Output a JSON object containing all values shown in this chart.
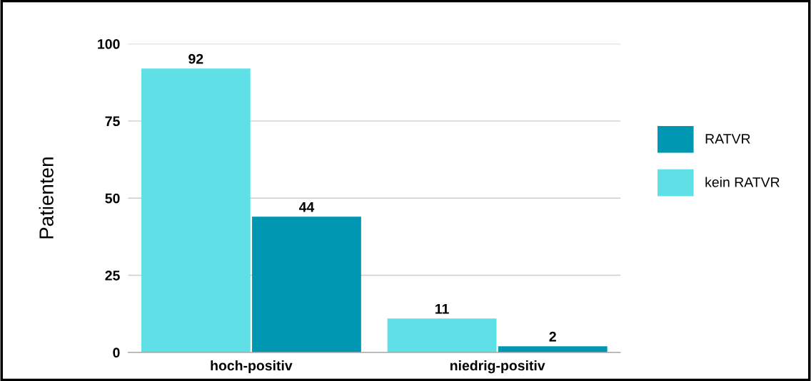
{
  "chart_data": {
    "type": "bar",
    "ylabel": "Patienten",
    "categories": [
      "hoch-positiv",
      "niedrig-positiv"
    ],
    "series": [
      {
        "name": "kein RATVR",
        "color": "#5ee0e6",
        "values": [
          92,
          11
        ]
      },
      {
        "name": "RATVR",
        "color": "#0097b2",
        "values": [
          44,
          2
        ]
      }
    ],
    "ylim": [
      0,
      100
    ],
    "yticks": [
      0,
      25,
      50,
      75,
      100
    ],
    "grid": "y",
    "legend": "right",
    "data_labels": true
  }
}
